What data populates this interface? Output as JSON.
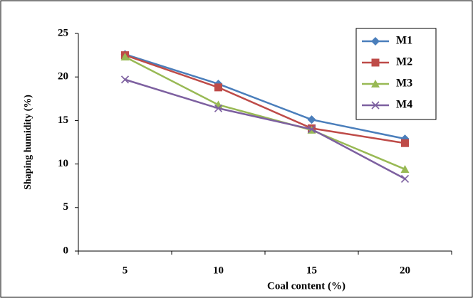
{
  "chart_data": {
    "type": "line",
    "x_label": "Coal content (%)",
    "y_label": "Shaping humidity (%)",
    "categories": [
      "5",
      "10",
      "15",
      "20"
    ],
    "series": [
      {
        "name": "M1",
        "color": "#4a7ebb",
        "marker": "diamond",
        "values": [
          22.6,
          19.2,
          15.1,
          12.9
        ]
      },
      {
        "name": "M2",
        "color": "#be4b48",
        "marker": "square",
        "values": [
          22.5,
          18.8,
          14.1,
          12.4
        ]
      },
      {
        "name": "M3",
        "color": "#98b954",
        "marker": "triangle",
        "values": [
          22.3,
          16.8,
          13.9,
          9.4
        ]
      },
      {
        "name": "M4",
        "color": "#7d60a0",
        "marker": "x",
        "values": [
          19.7,
          16.4,
          14.0,
          8.3
        ]
      }
    ],
    "ylim": [
      0,
      25
    ],
    "yticks": [
      0,
      5,
      10,
      15,
      20,
      25
    ],
    "grid": false,
    "legend": "top-right"
  }
}
